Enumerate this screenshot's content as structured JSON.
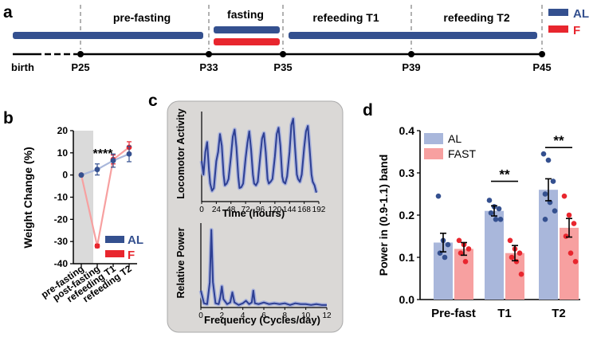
{
  "colors": {
    "al": "#34508f",
    "f": "#e8262e",
    "al_light": "#a9b7db",
    "f_light": "#f7a0a0",
    "shade": "#dadada",
    "panel_bg": "#dad8d6",
    "trace": "#2d3f93",
    "trace_light": "#aab3dc",
    "text": "#111111"
  },
  "panel_a": {
    "label": "a",
    "phases": [
      "pre-fasting",
      "fasting",
      "refeeding T1",
      "refeeding T2"
    ],
    "timeline_labels": [
      "birth",
      "P25",
      "P33",
      "P35",
      "P39",
      "P45"
    ],
    "legend": [
      {
        "name": "AL",
        "color": "#34508f"
      },
      {
        "name": "F",
        "color": "#e8262e"
      }
    ]
  },
  "chart_data": [
    {
      "id": "b",
      "type": "line",
      "title": "",
      "ylabel": "Weight Change (%)",
      "xlabel": "",
      "categories": [
        "pre-fasting",
        "post-fasting",
        "refeeding T1",
        "refeeding T2"
      ],
      "ylim": [
        -40,
        20
      ],
      "yticks": [
        -40,
        -30,
        -20,
        -10,
        0,
        10,
        20
      ],
      "series": [
        {
          "name": "AL",
          "values": [
            0,
            2.5,
            6.5,
            9.5
          ],
          "errors": [
            0,
            2.5,
            3,
            3.5
          ]
        },
        {
          "name": "F",
          "values": [
            0,
            -32,
            7,
            12.5
          ],
          "errors": [
            0,
            0.8,
            2,
            2.5
          ]
        }
      ],
      "annotation": "****",
      "legend": [
        "AL",
        "F"
      ],
      "legend_position": "bottom-right"
    },
    {
      "id": "c-top",
      "type": "line",
      "ylabel": "Locomotor Activity",
      "xlabel": "Time (hours)",
      "xticks": [
        0,
        24,
        48,
        72,
        96,
        120,
        144,
        168,
        192
      ],
      "xlim": [
        0,
        192
      ],
      "ylim": [
        0,
        1
      ],
      "x": [
        0,
        3,
        6,
        9,
        12,
        14,
        17,
        20,
        24,
        27,
        30,
        33,
        36,
        38,
        41,
        44,
        48,
        51,
        54,
        57,
        60,
        62,
        65,
        68,
        72,
        75,
        78,
        81,
        84,
        86,
        89,
        92,
        96,
        99,
        102,
        105,
        108,
        110,
        113,
        116,
        120,
        123,
        126,
        129,
        132,
        134,
        137,
        140,
        144,
        147,
        150,
        153,
        156,
        158,
        161,
        164,
        168,
        171,
        174,
        177,
        180,
        182,
        185,
        188
      ],
      "y": [
        0.45,
        0.3,
        0.55,
        0.66,
        0.35,
        0.2,
        0.12,
        0.15,
        0.45,
        0.55,
        0.75,
        0.62,
        0.3,
        0.18,
        0.2,
        0.25,
        0.5,
        0.72,
        0.8,
        0.6,
        0.28,
        0.15,
        0.16,
        0.2,
        0.48,
        0.65,
        0.78,
        0.58,
        0.3,
        0.2,
        0.18,
        0.22,
        0.5,
        0.7,
        0.76,
        0.55,
        0.25,
        0.2,
        0.22,
        0.25,
        0.5,
        0.75,
        0.82,
        0.62,
        0.28,
        0.22,
        0.2,
        0.28,
        0.55,
        0.85,
        0.92,
        0.6,
        0.3,
        0.25,
        0.22,
        0.3,
        0.6,
        0.78,
        0.84,
        0.58,
        0.3,
        0.22,
        0.18,
        0.1
      ],
      "label": "c"
    },
    {
      "id": "c-bottom",
      "type": "line",
      "ylabel": "Relative Power",
      "xlabel": "Frequency (Cycles/day)",
      "xticks": [
        0,
        2,
        4,
        6,
        8,
        10,
        12
      ],
      "xlim": [
        0,
        12
      ],
      "ylim": [
        0,
        1
      ],
      "x": [
        0,
        0.3,
        0.6,
        0.85,
        1.0,
        1.15,
        1.4,
        1.7,
        1.85,
        2.0,
        2.15,
        2.5,
        2.8,
        3.0,
        3.2,
        3.6,
        4.0,
        4.3,
        4.6,
        4.85,
        5.0,
        5.15,
        5.5,
        6.0,
        6.5,
        7.0,
        7.5,
        8.0,
        8.5,
        9.0,
        9.5,
        10.0,
        10.5,
        11.0,
        11.5,
        12.0
      ],
      "y": [
        0.2,
        0.05,
        0.04,
        0.3,
        0.92,
        0.3,
        0.05,
        0.04,
        0.12,
        0.25,
        0.1,
        0.04,
        0.06,
        0.18,
        0.06,
        0.03,
        0.05,
        0.08,
        0.04,
        0.06,
        0.2,
        0.05,
        0.04,
        0.06,
        0.04,
        0.05,
        0.04,
        0.05,
        0.03,
        0.05,
        0.04,
        0.04,
        0.03,
        0.04,
        0.03,
        0.03
      ]
    },
    {
      "id": "d",
      "type": "bar",
      "ylabel": "Power in (0.9-1.1) band",
      "xlabel": "",
      "categories": [
        "Pre-fast",
        "T1",
        "T2"
      ],
      "ylim": [
        0,
        0.4
      ],
      "yticks": [
        0.0,
        0.1,
        0.2,
        0.3,
        0.4
      ],
      "series": [
        {
          "name": "AL",
          "values": [
            0.135,
            0.21,
            0.26
          ],
          "errors": [
            0.022,
            0.012,
            0.026
          ],
          "points": [
            [
              0.245,
              0.14,
              0.13,
              0.11,
              0.1
            ],
            [
              0.235,
              0.22,
              0.215,
              0.205,
              0.19,
              0.19
            ],
            [
              0.345,
              0.33,
              0.28,
              0.25,
              0.23,
              0.21,
              0.19
            ]
          ]
        },
        {
          "name": "FAST",
          "values": [
            0.12,
            0.11,
            0.17
          ],
          "errors": [
            0.015,
            0.018,
            0.022
          ],
          "points": [
            [
              0.14,
              0.13,
              0.12,
              0.11,
              0.09
            ],
            [
              0.14,
              0.12,
              0.11,
              0.1,
              0.09,
              0.06
            ],
            [
              0.245,
              0.2,
              0.18,
              0.15,
              0.11,
              0.09
            ]
          ]
        }
      ],
      "significance": [
        {
          "category": "T1",
          "text": "**"
        },
        {
          "category": "T2",
          "text": "**"
        }
      ],
      "legend": [
        "AL",
        "FAST"
      ],
      "legend_position": "top-left",
      "label": "d"
    }
  ],
  "panel_labels": {
    "b": "b",
    "c": "c",
    "d": "d"
  }
}
